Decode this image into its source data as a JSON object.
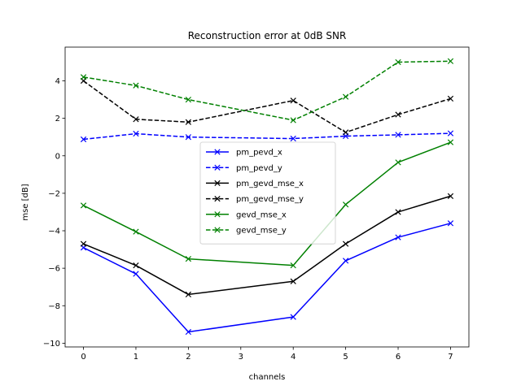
{
  "chart_data": {
    "type": "line",
    "title": "Reconstruction error at 0dB SNR",
    "xlabel": "channels",
    "ylabel": "mse [dB]",
    "x": [
      0,
      1,
      2,
      4,
      5,
      6,
      7
    ],
    "xticks": [
      0,
      1,
      2,
      3,
      4,
      5,
      6,
      7
    ],
    "yticks": [
      -10,
      -8,
      -6,
      -4,
      -2,
      0,
      2,
      4
    ],
    "xlim": [
      -0.35,
      7.35
    ],
    "ylim": [
      -10.2,
      5.8
    ],
    "grid": false,
    "legend_position": "center",
    "series": [
      {
        "name": "pm_pevd_x",
        "color": "#0000ff",
        "linestyle": "solid",
        "marker": "x",
        "values": [
          -4.9,
          -6.3,
          -9.4,
          -8.6,
          -5.6,
          -4.35,
          -3.6
        ]
      },
      {
        "name": "pm_pevd_y",
        "color": "#0000ff",
        "linestyle": "dashed",
        "marker": "x",
        "values": [
          0.88,
          1.18,
          1.0,
          0.92,
          1.05,
          1.12,
          1.2
        ]
      },
      {
        "name": "pm_gevd_mse_x",
        "color": "#000000",
        "linestyle": "solid",
        "marker": "x",
        "values": [
          -4.7,
          -5.85,
          -7.4,
          -6.7,
          -4.7,
          -3.0,
          -2.15
        ]
      },
      {
        "name": "pm_gevd_mse_y",
        "color": "#000000",
        "linestyle": "dashed",
        "marker": "x",
        "values": [
          4.0,
          1.95,
          1.8,
          2.95,
          1.25,
          2.2,
          3.05
        ]
      },
      {
        "name": "gevd_mse_x",
        "color": "#008000",
        "linestyle": "solid",
        "marker": "x",
        "values": [
          -2.65,
          -4.05,
          -5.5,
          -5.85,
          -2.6,
          -0.35,
          0.72
        ]
      },
      {
        "name": "gevd_mse_y",
        "color": "#008000",
        "linestyle": "dashed",
        "marker": "x",
        "values": [
          4.2,
          3.75,
          3.0,
          1.9,
          3.15,
          5.0,
          5.05
        ]
      }
    ]
  }
}
